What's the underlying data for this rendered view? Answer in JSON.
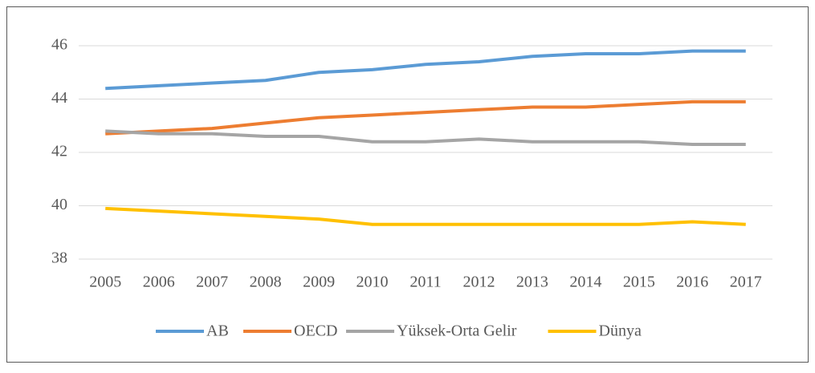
{
  "chart_data": {
    "type": "line",
    "categories": [
      "2005",
      "2006",
      "2007",
      "2008",
      "2009",
      "2010",
      "2011",
      "2012",
      "2013",
      "2014",
      "2015",
      "2016",
      "2017"
    ],
    "series": [
      {
        "name": "AB",
        "color": "#5b9bd5",
        "values": [
          44.4,
          44.5,
          44.6,
          44.7,
          45.0,
          45.1,
          45.3,
          45.4,
          45.6,
          45.7,
          45.7,
          45.8,
          45.8
        ]
      },
      {
        "name": "OECD",
        "color": "#ed7d31",
        "values": [
          42.7,
          42.8,
          42.9,
          43.1,
          43.3,
          43.4,
          43.5,
          43.6,
          43.7,
          43.7,
          43.8,
          43.9,
          43.9
        ]
      },
      {
        "name": "Yüksek-Orta Gelir",
        "color": "#a5a5a5",
        "values": [
          42.8,
          42.7,
          42.7,
          42.6,
          42.6,
          42.4,
          42.4,
          42.5,
          42.4,
          42.4,
          42.4,
          42.3,
          42.3
        ]
      },
      {
        "name": "Dünya",
        "color": "#ffc000",
        "values": [
          39.9,
          39.8,
          39.7,
          39.6,
          39.5,
          39.3,
          39.3,
          39.3,
          39.3,
          39.3,
          39.3,
          39.4,
          39.3
        ]
      }
    ],
    "ylim": [
      38,
      46
    ],
    "yticks": [
      38,
      40,
      42,
      44,
      46
    ],
    "grid": true,
    "legend": "bottom"
  }
}
